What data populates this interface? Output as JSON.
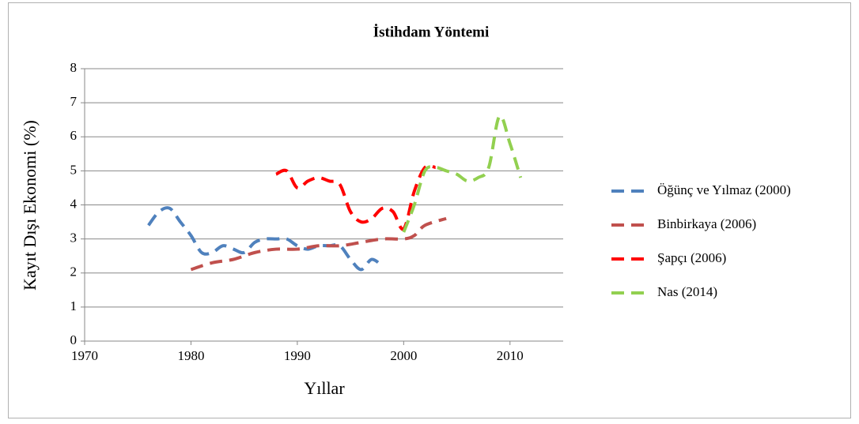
{
  "chart_data": {
    "type": "line",
    "title": "İstihdam Yöntemi",
    "x_label": "Yıllar",
    "y_label": "Kayıt Dışı Ekonomi (%)",
    "xlim": [
      1970,
      2015
    ],
    "xticks": [
      1970,
      1980,
      1990,
      2000,
      2010
    ],
    "ylim": [
      0,
      8
    ],
    "yticks": [
      0,
      1,
      2,
      3,
      4,
      5,
      6,
      7,
      8
    ],
    "grid": true,
    "legend": "right",
    "series": [
      {
        "name": "Öğünç ve Yılmaz (2000)",
        "color": "#4f81bd",
        "x": [
          1976,
          1977,
          1978,
          1979,
          1980,
          1981,
          1982,
          1983,
          1984,
          1985,
          1986,
          1987,
          1988,
          1989,
          1990,
          1991,
          1992,
          1993,
          1994,
          1995,
          1996,
          1997,
          1998
        ],
        "values": [
          3.4,
          3.8,
          3.9,
          3.5,
          3.1,
          2.6,
          2.6,
          2.8,
          2.7,
          2.6,
          2.9,
          3.0,
          3.0,
          3.0,
          2.8,
          2.7,
          2.8,
          2.8,
          2.8,
          2.4,
          2.1,
          2.4,
          2.2
        ]
      },
      {
        "name": "Binbirkaya (2006)",
        "color": "#c0504d",
        "x": [
          1980,
          1982,
          1984,
          1986,
          1988,
          1990,
          1992,
          1994,
          1996,
          1998,
          2000,
          2001,
          2002,
          2004
        ],
        "values": [
          2.1,
          2.3,
          2.4,
          2.6,
          2.7,
          2.7,
          2.8,
          2.8,
          2.9,
          3.0,
          3.0,
          3.1,
          3.4,
          3.6
        ]
      },
      {
        "name": "Şapçı (2006)",
        "color": "#ff0000",
        "x": [
          1988,
          1989,
          1990,
          1991,
          1992,
          1993,
          1994,
          1995,
          1996,
          1997,
          1998,
          1999,
          2000,
          2001,
          2002,
          2003
        ],
        "values": [
          4.9,
          5.0,
          4.5,
          4.7,
          4.8,
          4.7,
          4.6,
          3.8,
          3.5,
          3.6,
          3.9,
          3.8,
          3.3,
          4.4,
          5.1,
          5.1
        ]
      },
      {
        "name": "Nas (2014)",
        "color": "#92d050",
        "x": [
          2000,
          2001,
          2002,
          2003,
          2004,
          2005,
          2006,
          2007,
          2008,
          2009,
          2010,
          2011
        ],
        "values": [
          3.2,
          4.0,
          5.0,
          5.1,
          5.0,
          4.9,
          4.7,
          4.8,
          5.1,
          6.6,
          5.8,
          4.8
        ]
      }
    ]
  }
}
